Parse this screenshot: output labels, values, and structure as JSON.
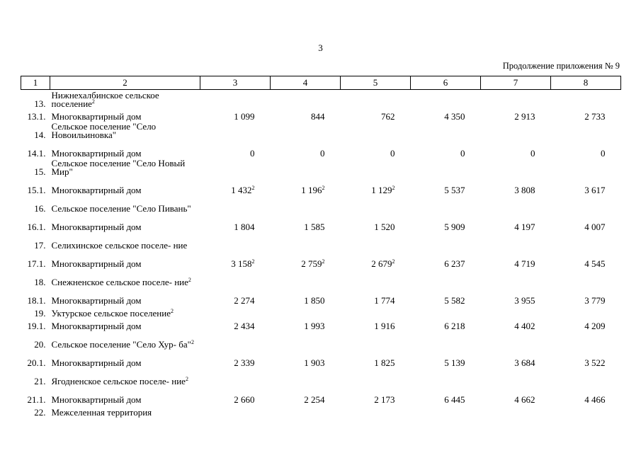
{
  "page_number": "3",
  "continuation": "Продолжение приложения № 9",
  "header": [
    "1",
    "2",
    "3",
    "4",
    "5",
    "6",
    "7",
    "8"
  ],
  "rows": [
    {
      "n": "13.",
      "name": "Нижнехалбинское сельское поселение",
      "sup": "2",
      "type": "sec"
    },
    {
      "n": "13.1.",
      "name": "Многоквартирный дом",
      "vals": [
        "1 099",
        "844",
        "762",
        "4 350",
        "2 913",
        "2 733"
      ],
      "type": "one"
    },
    {
      "n": "14.",
      "name": "Сельское поселение \"Село Новоильиновка\"",
      "type": "sec"
    },
    {
      "n": "14.1.",
      "name": "Многоквартирный дом",
      "vals": [
        "0",
        "0",
        "0",
        "0",
        "0",
        "0"
      ],
      "type": "item"
    },
    {
      "n": "15.",
      "name": "Сельское поселение \"Село Новый Мир\"",
      "type": "sec"
    },
    {
      "n": "15.1.",
      "name": "Многоквартирный дом",
      "vals": [
        "1 432",
        "1 196",
        "1 129",
        "5 537",
        "3 808",
        "3 617"
      ],
      "sups": [
        "2",
        "2",
        "2",
        "",
        "",
        ""
      ],
      "type": "item"
    },
    {
      "n": "16.",
      "name": "Сельское поселение \"Село Пивань\"",
      "type": "sec"
    },
    {
      "n": "16.1.",
      "name": "Многоквартирный дом",
      "vals": [
        "1 804",
        "1 585",
        "1 520",
        "5 909",
        "4 197",
        "4 007"
      ],
      "type": "item"
    },
    {
      "n": "17.",
      "name": "Селихинское сельское поселе- ние",
      "type": "sec"
    },
    {
      "n": "17.1.",
      "name": "Многоквартирный дом",
      "vals": [
        "3 158",
        "2 759",
        "2 679",
        "6 237",
        "4 719",
        "4 545"
      ],
      "sups": [
        "2",
        "2",
        "2",
        "",
        "",
        ""
      ],
      "type": "item"
    },
    {
      "n": "18.",
      "name": "Снежненское сельское поселе- ние",
      "sup": "2",
      "type": "sec"
    },
    {
      "n": "18.1.",
      "name": "Многоквартирный дом",
      "vals": [
        "2 274",
        "1 850",
        "1 774",
        "5 582",
        "3 955",
        "3 779"
      ],
      "type": "item"
    },
    {
      "n": "19.",
      "name": "Уктурское сельское поселение",
      "sup": "2",
      "type": "one"
    },
    {
      "n": "19.1.",
      "name": "Многоквартирный дом",
      "vals": [
        "2 434",
        "1 993",
        "1 916",
        "6 218",
        "4 402",
        "4 209"
      ],
      "type": "one"
    },
    {
      "n": "20.",
      "name": "Сельское поселение \"Село Хур- ба\"",
      "sup": "2",
      "type": "sec"
    },
    {
      "n": "20.1.",
      "name": "Многоквартирный дом",
      "vals": [
        "2 339",
        "1 903",
        "1 825",
        "5 139",
        "3 684",
        "3 522"
      ],
      "type": "item"
    },
    {
      "n": "21.",
      "name": "Ягодненское сельское поселе- ние",
      "sup": "2",
      "type": "sec"
    },
    {
      "n": "21.1.",
      "name": "Многоквартирный дом",
      "vals": [
        "2 660",
        "2 254",
        "2 173",
        "6 445",
        "4 662",
        "4 466"
      ],
      "type": "item"
    },
    {
      "n": "22.",
      "name": "Межселенная территория",
      "type": "one"
    }
  ]
}
